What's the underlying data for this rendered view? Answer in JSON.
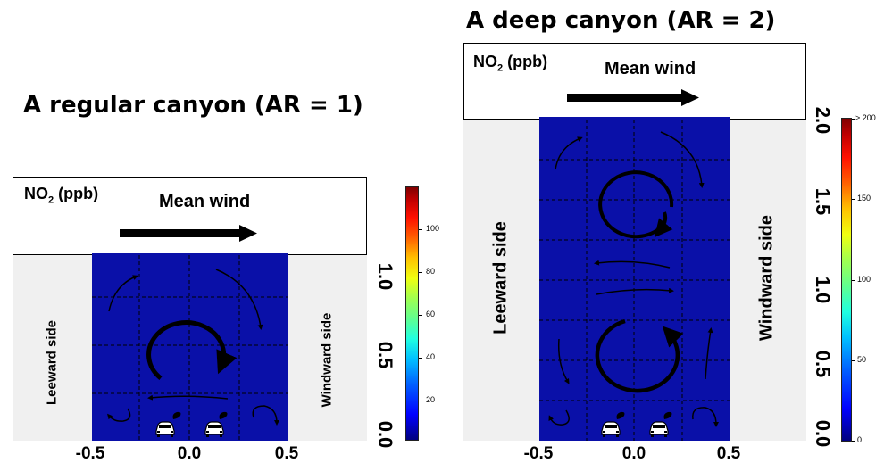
{
  "regular": {
    "title": "A regular canyon (AR = 1)",
    "no2_main": "NO",
    "no2_sub": "2",
    "no2_unit": " (ppb)",
    "wind_label": "Mean wind",
    "leeward": "Leeward side",
    "windward": "Windward side",
    "x_ticks": [
      "-0.5",
      "0.0",
      "0.5"
    ],
    "y_ticks": [
      "0.0",
      "0.5",
      "1.0"
    ],
    "colorbar_ticks": [
      "20",
      "40",
      "60",
      "80",
      "100"
    ]
  },
  "deep": {
    "title": "A deep canyon (AR = 2)",
    "no2_main": "NO",
    "no2_sub": "2",
    "no2_unit": " (ppb)",
    "wind_label": "Mean wind",
    "leeward": "Leeward side",
    "windward": "Windward side",
    "x_ticks": [
      "-0.5",
      "0.0",
      "0.5"
    ],
    "y_ticks": [
      "0.0",
      "0.5",
      "1.0",
      "1.5",
      "2.0"
    ],
    "colorbar_ticks": [
      "0",
      "50",
      "100",
      "150",
      "> 200"
    ]
  },
  "colors": {
    "canyon_fill": "#0a10a8",
    "side_fill": "#f0f0f0",
    "colorbar_stops": [
      "#00007f",
      "#0000ff",
      "#0060ff",
      "#00c0ff",
      "#20ffe0",
      "#60ff90",
      "#a0ff50",
      "#f0ff10",
      "#ffc000",
      "#ff6000",
      "#ff1000",
      "#c00000",
      "#800000"
    ]
  },
  "icons": {
    "wind_arrow": "arrow-right-icon",
    "vortex": "circular-arrow-icon",
    "car": "car-icon"
  }
}
